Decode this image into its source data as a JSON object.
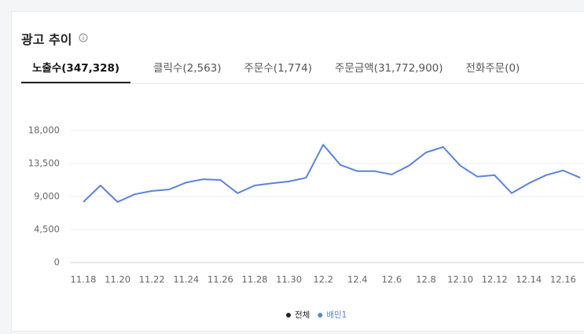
{
  "header": {
    "title": "광고 추이",
    "tabs": [
      "노출수(347,328)",
      "클릭수(2,563)",
      "주문수(1,774)",
      "주문금액(31,772,900)",
      "전화주문(0)"
    ]
  },
  "chart_data": {
    "type": "line",
    "categories": [
      "11.18",
      null,
      "11.20",
      null,
      "11.22",
      null,
      "11.24",
      null,
      "11.26",
      null,
      "11.28",
      null,
      "11.30",
      null,
      "12.2",
      null,
      "12.4",
      null,
      "12.6",
      null,
      "12.8",
      null,
      "12.10",
      null,
      "12.12",
      null,
      "12.14",
      null,
      "12.16",
      null
    ],
    "series": [
      {
        "name": "전체",
        "color": "#222222",
        "values": [
          null,
          null,
          null,
          null,
          null,
          null,
          null,
          null,
          null,
          null,
          null,
          null,
          null,
          null,
          null,
          null,
          null,
          null,
          null,
          null,
          null,
          null,
          null,
          null,
          null,
          null,
          null,
          null,
          null,
          null
        ]
      },
      {
        "name": "배민1",
        "color": "#5a82db",
        "values": [
          8250,
          10500,
          8250,
          9300,
          9750,
          9950,
          10900,
          11350,
          11250,
          9450,
          10500,
          10800,
          11050,
          11550,
          16050,
          13300,
          12450,
          12450,
          12000,
          13200,
          15000,
          15750,
          13200,
          11700,
          11900,
          9450,
          10800,
          11900,
          12550,
          11550
        ]
      }
    ],
    "ylim": [
      0,
      18000
    ],
    "yticks": [
      0,
      {
        "value": 4500,
        "label": "4,500"
      },
      {
        "value": 9000,
        "label": "9,000"
      },
      {
        "value": 13500,
        "label": "13,500"
      },
      {
        "value": 18000,
        "label": "18,000"
      }
    ],
    "grid": true
  }
}
